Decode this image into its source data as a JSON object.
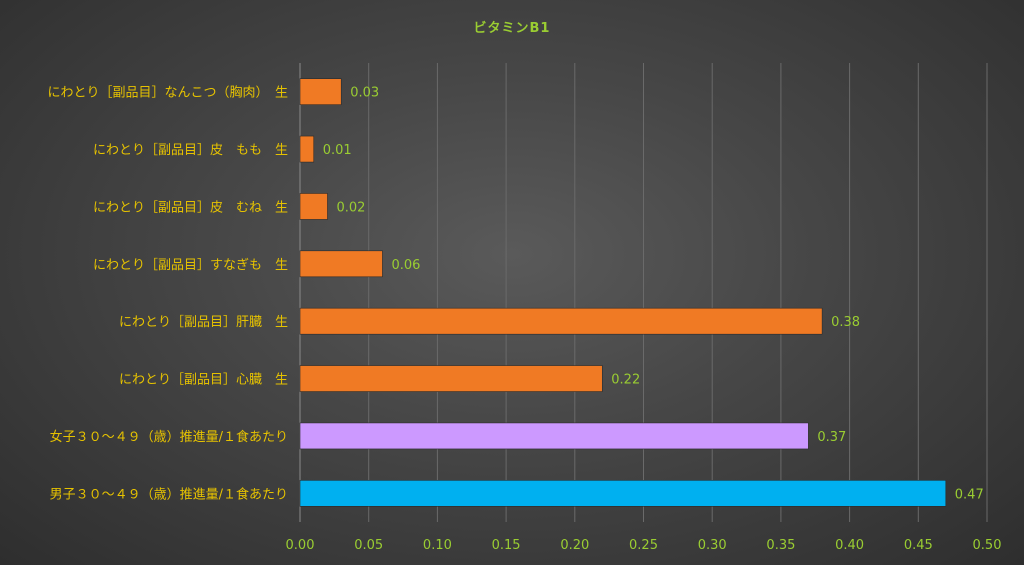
{
  "chart_data": {
    "type": "bar",
    "orientation": "horizontal",
    "title": "ビタミンB1",
    "categories": [
      "にわとり［副品目］なんこつ（胸肉）　生",
      "にわとり［副品目］皮　もも　生",
      "にわとり［副品目］皮　むね　生",
      "にわとり［副品目］すなぎも　生",
      "にわとり［副品目］肝臓　生",
      "にわとり［副品目］心臓　生",
      "女子３０～４９（歳）推進量/１食あたり",
      "男子３０～４９（歳）推進量/１食あたり"
    ],
    "values": [
      0.03,
      0.01,
      0.02,
      0.06,
      0.38,
      0.22,
      0.37,
      0.47
    ],
    "data_labels": [
      "0.03",
      "0.01",
      "0.02",
      "0.06",
      "0.38",
      "0.22",
      "0.37",
      "0.47"
    ],
    "bar_colors": [
      "#F07A24",
      "#F07A24",
      "#F07A24",
      "#F07A24",
      "#F07A24",
      "#F07A24",
      "#CC99FF",
      "#00B0F0"
    ],
    "xlim": [
      0,
      0.5
    ],
    "xticks": [
      "0.00",
      "0.05",
      "0.10",
      "0.15",
      "0.20",
      "0.25",
      "0.30",
      "0.35",
      "0.40",
      "0.45",
      "0.50"
    ],
    "grid": true,
    "legend": "none"
  }
}
